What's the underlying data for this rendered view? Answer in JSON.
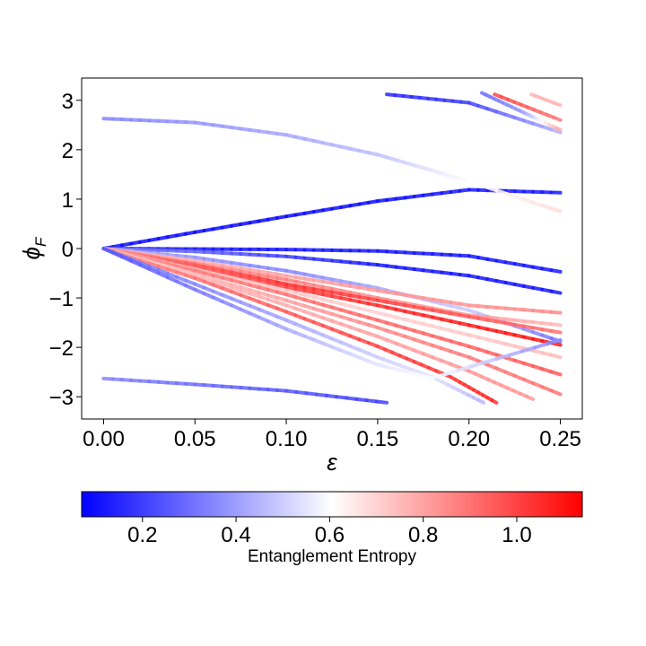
{
  "chart_data": {
    "type": "line",
    "xlabel": "ε",
    "ylabel": "ϕ",
    "ylabel_subscript": "F",
    "xlim": [
      -0.012,
      0.262
    ],
    "ylim": [
      -3.45,
      3.45
    ],
    "xticks": [
      0.0,
      0.05,
      0.1,
      0.15,
      0.2,
      0.25
    ],
    "xtick_labels": [
      "0.00",
      "0.05",
      "0.10",
      "0.15",
      "0.20",
      "0.25"
    ],
    "yticks": [
      3,
      2,
      1,
      0,
      -1,
      -2,
      -3
    ],
    "ytick_labels": [
      "3",
      "2",
      "1",
      "0",
      "−1",
      "−2",
      "−3"
    ],
    "grid": false,
    "colorbar": {
      "label": "Entanglement Entropy",
      "cmap": [
        "#0000ff",
        "#ffffff",
        "#ff0000"
      ],
      "range": [
        0.07,
        1.14
      ],
      "ticks": [
        0.2,
        0.4,
        0.6,
        0.8,
        1.0
      ],
      "tick_labels": [
        "0.2",
        "0.4",
        "0.6",
        "0.8",
        "1.0"
      ]
    },
    "series": [
      {
        "points": [
          [
            0,
            0
          ],
          [
            0.05,
            0.33
          ],
          [
            0.1,
            0.65
          ],
          [
            0.15,
            0.96
          ],
          [
            0.2,
            1.19
          ],
          [
            0.25,
            1.13
          ]
        ],
        "entropy": [
          0.1,
          0.1,
          0.1,
          0.1,
          0.12,
          0.12
        ]
      },
      {
        "points": [
          [
            0,
            2.63
          ],
          [
            0.05,
            2.55
          ],
          [
            0.1,
            2.3
          ],
          [
            0.15,
            1.9
          ],
          [
            0.2,
            1.36
          ],
          [
            0.25,
            0.75
          ]
        ],
        "entropy": [
          0.35,
          0.38,
          0.42,
          0.47,
          0.6,
          0.68
        ]
      },
      {
        "points": [
          [
            0,
            0
          ],
          [
            0.05,
            -0.01
          ],
          [
            0.1,
            -0.02
          ],
          [
            0.15,
            -0.05
          ],
          [
            0.2,
            -0.15
          ],
          [
            0.25,
            -0.47
          ]
        ],
        "entropy": [
          0.12,
          0.12,
          0.12,
          0.12,
          0.12,
          0.12
        ]
      },
      {
        "points": [
          [
            0,
            0
          ],
          [
            0.05,
            -0.06
          ],
          [
            0.1,
            -0.16
          ],
          [
            0.15,
            -0.33
          ],
          [
            0.2,
            -0.55
          ],
          [
            0.25,
            -0.9
          ]
        ],
        "entropy": [
          0.35,
          0.28,
          0.2,
          0.12,
          0.12,
          0.12
        ]
      },
      {
        "points": [
          [
            0,
            0
          ],
          [
            0.05,
            -0.18
          ],
          [
            0.1,
            -0.45
          ],
          [
            0.15,
            -0.8
          ],
          [
            0.2,
            -1.25
          ],
          [
            0.25,
            -1.88
          ]
        ],
        "entropy": [
          0.45,
          0.38,
          0.35,
          0.42,
          0.5,
          0.3
        ]
      },
      {
        "points": [
          [
            0,
            0
          ],
          [
            0.05,
            -0.25
          ],
          [
            0.1,
            -0.55
          ],
          [
            0.15,
            -0.85
          ],
          [
            0.2,
            -1.15
          ],
          [
            0.25,
            -1.3
          ]
        ],
        "entropy": [
          0.75,
          0.78,
          0.8,
          0.82,
          0.83,
          0.85
        ]
      },
      {
        "points": [
          [
            0,
            0
          ],
          [
            0.05,
            -0.3
          ],
          [
            0.1,
            -0.63
          ],
          [
            0.15,
            -1.0
          ],
          [
            0.2,
            -1.35
          ],
          [
            0.25,
            -1.55
          ]
        ],
        "entropy": [
          0.8,
          0.85,
          0.88,
          0.85,
          0.82,
          0.75
        ]
      },
      {
        "points": [
          [
            0,
            0
          ],
          [
            0.05,
            -0.33
          ],
          [
            0.1,
            -0.72
          ],
          [
            0.15,
            -1.05
          ],
          [
            0.2,
            -1.38
          ],
          [
            0.25,
            -1.7
          ]
        ],
        "entropy": [
          0.85,
          0.95,
          1.05,
          1.0,
          0.95,
          0.9
        ]
      },
      {
        "points": [
          [
            0,
            0
          ],
          [
            0.05,
            -0.38
          ],
          [
            0.1,
            -0.78
          ],
          [
            0.15,
            -1.15
          ],
          [
            0.2,
            -1.55
          ],
          [
            0.25,
            -1.95
          ]
        ],
        "entropy": [
          0.85,
          0.95,
          1.0,
          1.05,
          1.08,
          1.1
        ]
      },
      {
        "points": [
          [
            0,
            0
          ],
          [
            0.05,
            -0.42
          ],
          [
            0.1,
            -0.85
          ],
          [
            0.15,
            -1.3
          ],
          [
            0.2,
            -1.75
          ],
          [
            0.25,
            -2.2
          ]
        ],
        "entropy": [
          0.8,
          0.75,
          0.72,
          0.7,
          0.72,
          0.75
        ]
      },
      {
        "points": [
          [
            0,
            0
          ],
          [
            0.05,
            -0.45
          ],
          [
            0.1,
            -0.93
          ],
          [
            0.15,
            -1.45
          ],
          [
            0.2,
            -1.98
          ],
          [
            0.25,
            -2.55
          ]
        ],
        "entropy": [
          0.82,
          0.88,
          0.9,
          0.92,
          0.93,
          0.95
        ]
      },
      {
        "points": [
          [
            0,
            0
          ],
          [
            0.05,
            -0.52
          ],
          [
            0.1,
            -1.05
          ],
          [
            0.15,
            -1.6
          ],
          [
            0.2,
            -2.2
          ],
          [
            0.25,
            -2.95
          ]
        ],
        "entropy": [
          0.72,
          0.75,
          0.8,
          0.85,
          0.88,
          0.9
        ]
      },
      {
        "points": [
          [
            0,
            0
          ],
          [
            0.05,
            -0.55
          ],
          [
            0.1,
            -1.15
          ],
          [
            0.15,
            -1.78
          ],
          [
            0.2,
            -2.48
          ],
          [
            0.235,
            -3.05
          ]
        ],
        "entropy": [
          0.7,
          0.75,
          0.78,
          0.8,
          0.82,
          0.82
        ]
      },
      {
        "points": [
          [
            0,
            0
          ],
          [
            0.05,
            -0.6
          ],
          [
            0.1,
            -1.28
          ],
          [
            0.15,
            -1.98
          ],
          [
            0.19,
            -2.6
          ],
          [
            0.215,
            -3.12
          ]
        ],
        "entropy": [
          0.85,
          0.9,
          0.95,
          1.0,
          1.02,
          1.05
        ]
      },
      {
        "points": [
          [
            0,
            0
          ],
          [
            0.05,
            -0.72
          ],
          [
            0.1,
            -1.45
          ],
          [
            0.15,
            -2.2
          ],
          [
            0.18,
            -2.6
          ],
          [
            0.208,
            -3.12
          ]
        ],
        "entropy": [
          0.3,
          0.35,
          0.42,
          0.5,
          0.55,
          0.45
        ]
      },
      {
        "points": [
          [
            0,
            0
          ],
          [
            0.05,
            -0.83
          ],
          [
            0.1,
            -1.63
          ],
          [
            0.15,
            -2.35
          ],
          [
            0.18,
            -2.62
          ],
          [
            0.25,
            -1.85
          ]
        ],
        "entropy": [
          0.25,
          0.32,
          0.42,
          0.55,
          0.6,
          0.35
        ]
      },
      {
        "points": [
          [
            0,
            -2.63
          ],
          [
            0.05,
            -2.75
          ],
          [
            0.1,
            -2.88
          ],
          [
            0.155,
            -3.12
          ]
        ],
        "entropy": [
          0.35,
          0.3,
          0.25,
          0.2
        ]
      },
      {
        "points": [
          [
            0.155,
            3.12
          ],
          [
            0.2,
            2.95
          ],
          [
            0.25,
            2.35
          ]
        ],
        "entropy": [
          0.15,
          0.2,
          0.45
        ]
      },
      {
        "points": [
          [
            0.207,
            3.15
          ],
          [
            0.23,
            2.75
          ],
          [
            0.25,
            2.4
          ]
        ],
        "entropy": [
          0.3,
          0.4,
          0.8
        ]
      },
      {
        "points": [
          [
            0.214,
            3.12
          ],
          [
            0.25,
            2.6
          ]
        ],
        "entropy": [
          1.0,
          0.88
        ]
      },
      {
        "points": [
          [
            0.234,
            3.12
          ],
          [
            0.25,
            2.9
          ]
        ],
        "entropy": [
          0.75,
          0.75
        ]
      }
    ]
  }
}
